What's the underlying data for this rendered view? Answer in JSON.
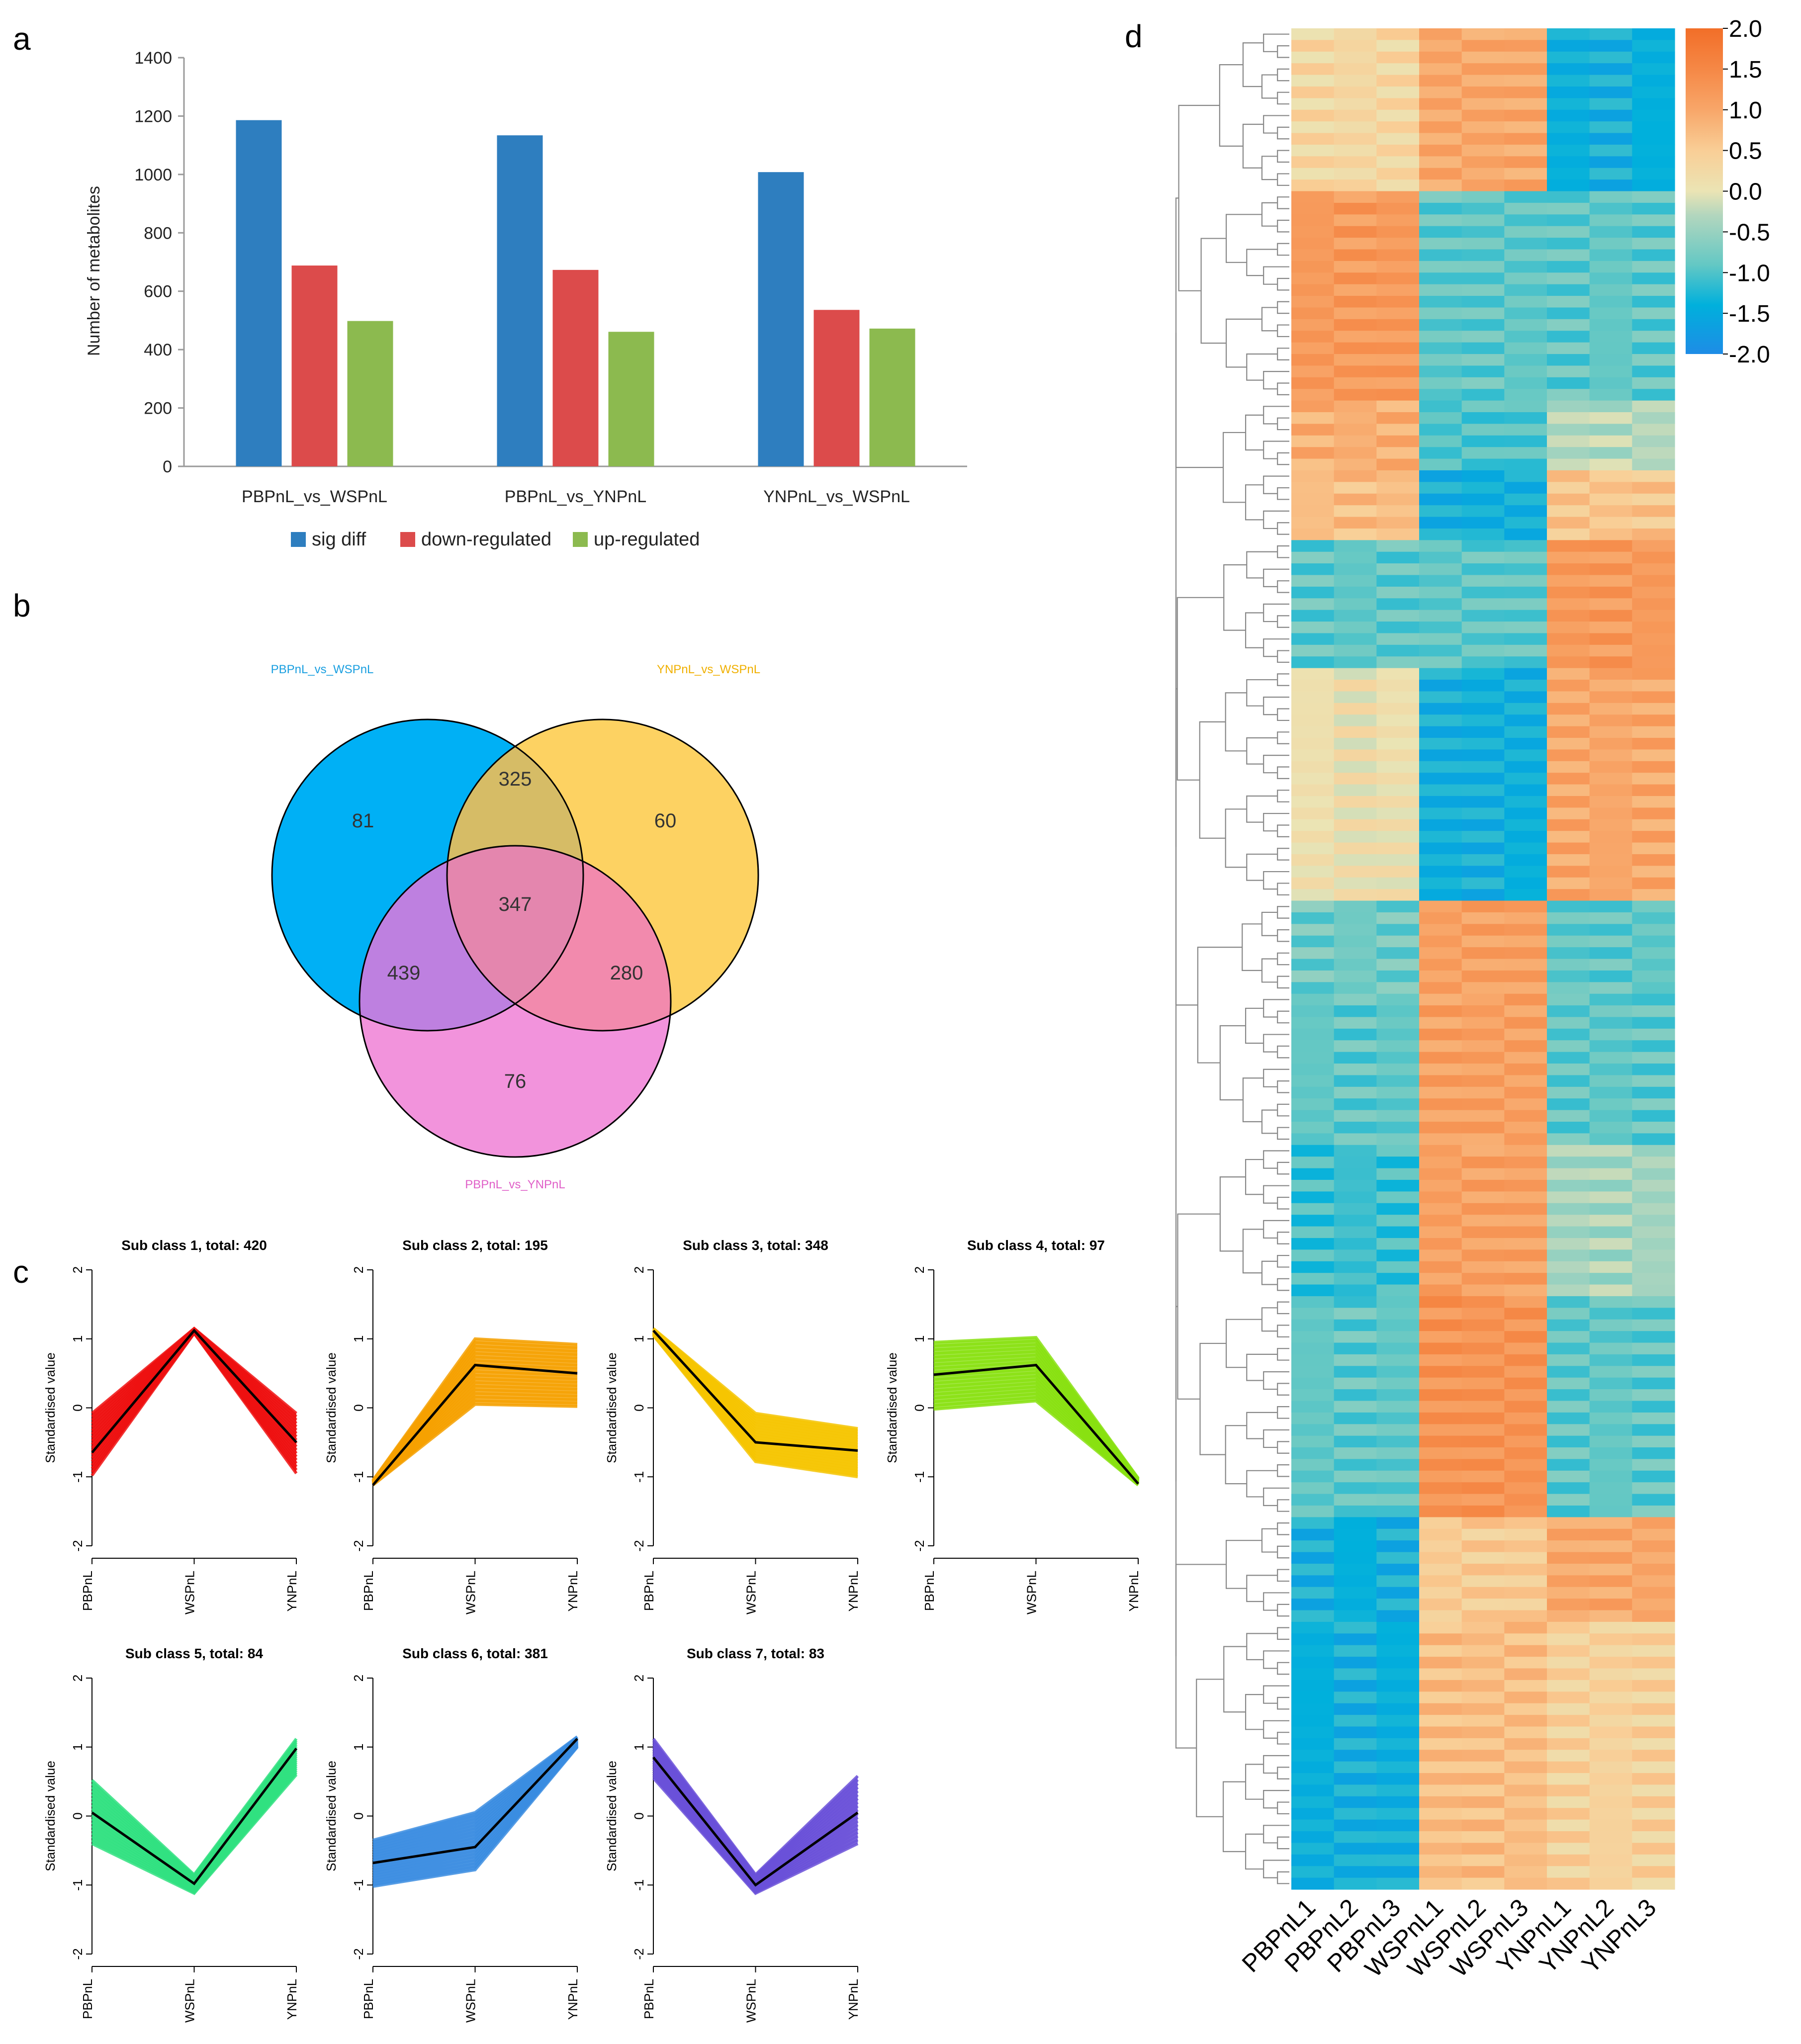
{
  "panel_labels": {
    "a": "a",
    "b": "b",
    "c": "c",
    "d": "d"
  },
  "chart_data": [
    {
      "id": "a",
      "type": "bar",
      "title": "",
      "xlabel": "",
      "ylabel": "Number of metabolites",
      "ylim": [
        0,
        1400
      ],
      "yticks": [
        0,
        200,
        400,
        600,
        800,
        1000,
        1200,
        1400
      ],
      "legend_position": "bottom",
      "categories": [
        "PBPnL_vs_WSPnL",
        "PBPnL_vs_YNPnL",
        "YNPnL_vs_WSPnL"
      ],
      "series": [
        {
          "name": "sig diff",
          "color": "#2e7ebf",
          "values": [
            1186,
            1134,
            1008
          ]
        },
        {
          "name": "down-regulated",
          "color": "#dc4b4b",
          "values": [
            688,
            673,
            536
          ]
        },
        {
          "name": "up-regulated",
          "color": "#8cba4f",
          "values": [
            498,
            461,
            472
          ]
        }
      ]
    },
    {
      "id": "b",
      "type": "venn",
      "sets": [
        {
          "name": "PBPnL_vs_WSPnL",
          "color": "#00b0f5",
          "label_color": "#1a9fe0"
        },
        {
          "name": "YNPnL_vs_WSPnL",
          "color": "#fdd262",
          "label_color": "#f0b000"
        },
        {
          "name": "PBPnL_vs_YNPnL",
          "color": "#f293dc",
          "label_color": "#e060c8"
        }
      ],
      "regions": {
        "only_PW": "81",
        "only_YW": "60",
        "only_PY": "76",
        "PW_YW": "325",
        "PW_PY": "439",
        "YW_PY": "280",
        "all": "347"
      }
    },
    {
      "id": "c",
      "type": "line",
      "ylabel": "Standardised value",
      "ylim": [
        -2,
        2
      ],
      "yticks": [
        "2",
        "1",
        "0",
        "-1",
        "-2"
      ],
      "x": [
        "PBPnL",
        "WSPnL",
        "YNPnL"
      ],
      "subclasses": [
        {
          "title": "Sub class 1, total: 420",
          "color": "#ee1010",
          "mean": [
            -0.65,
            1.12,
            -0.5
          ],
          "lower": [
            -0.98,
            1.08,
            -0.95
          ],
          "upper": [
            -0.08,
            1.15,
            -0.08
          ]
        },
        {
          "title": "Sub class 2, total: 195",
          "color": "#f5a000",
          "mean": [
            -1.12,
            0.62,
            0.5
          ],
          "lower": [
            -1.12,
            0.05,
            0.02
          ],
          "upper": [
            -1.05,
            1.0,
            0.92
          ]
        },
        {
          "title": "Sub class 3, total: 348",
          "color": "#f5c400",
          "mean": [
            1.12,
            -0.5,
            -0.62
          ],
          "lower": [
            1.05,
            -0.78,
            -1.0
          ],
          "upper": [
            1.15,
            -0.08,
            -0.3
          ]
        },
        {
          "title": "Sub class 4, total: 97",
          "color": "#88e010",
          "mean": [
            0.48,
            0.62,
            -1.1
          ],
          "lower": [
            -0.02,
            0.1,
            -1.12
          ],
          "upper": [
            0.95,
            1.02,
            -1.02
          ]
        },
        {
          "title": "Sub class 5, total: 84",
          "color": "#30e080",
          "mean": [
            0.05,
            -0.98,
            0.98
          ],
          "lower": [
            -0.4,
            -1.12,
            0.6
          ],
          "upper": [
            0.52,
            -0.85,
            1.12
          ]
        },
        {
          "title": "Sub class 6, total: 381",
          "color": "#3a8ce0",
          "mean": [
            -0.68,
            -0.45,
            1.12
          ],
          "lower": [
            -1.02,
            -0.78,
            1.0
          ],
          "upper": [
            -0.35,
            0.05,
            1.15
          ]
        },
        {
          "title": "Sub class 7, total: 83",
          "color": "#6a50d8",
          "mean": [
            0.85,
            -1.0,
            0.05
          ],
          "lower": [
            0.55,
            -1.12,
            -0.4
          ],
          "upper": [
            1.12,
            -0.85,
            0.58
          ]
        }
      ]
    },
    {
      "id": "d",
      "type": "heatmap",
      "columns": [
        "PBPnL1",
        "PBPnL2",
        "PBPnL3",
        "WSPnL1",
        "WSPnL2",
        "WSPnL3",
        "YNPnL1",
        "YNPnL2",
        "YNPnL3"
      ],
      "color_range": [
        -2,
        2
      ],
      "colorbar_ticks": [
        "2.0",
        "1.5",
        "1.0",
        "0.5",
        "0.0",
        "-0.5",
        "-1.0",
        "-1.5",
        "-2.0"
      ],
      "row_blocks": [
        {
          "rows": 14,
          "pattern": [
            0.3,
            0.3,
            0.3,
            1.0,
            1.0,
            1.0,
            -1.4,
            -1.4,
            -1.4
          ]
        },
        {
          "rows": 18,
          "pattern": [
            1.2,
            1.2,
            1.2,
            -0.9,
            -0.9,
            -0.9,
            -0.9,
            -0.9,
            -0.9
          ]
        },
        {
          "rows": 6,
          "pattern": [
            0.9,
            0.9,
            0.9,
            -1.0,
            -1.0,
            -1.0,
            -0.3,
            -0.3,
            -0.3
          ]
        },
        {
          "rows": 6,
          "pattern": [
            0.7,
            0.7,
            0.7,
            -1.4,
            -1.4,
            -1.4,
            0.6,
            0.6,
            0.6
          ]
        },
        {
          "rows": 11,
          "pattern": [
            -0.9,
            -0.9,
            -0.9,
            -0.9,
            -0.9,
            -0.9,
            1.2,
            1.2,
            1.2
          ]
        },
        {
          "rows": 20,
          "pattern": [
            0.1,
            0.1,
            0.1,
            -1.4,
            -1.4,
            -1.4,
            1.0,
            1.0,
            1.0
          ]
        },
        {
          "rows": 8,
          "pattern": [
            -0.8,
            -0.8,
            -0.8,
            1.1,
            1.1,
            1.1,
            -0.9,
            -0.9,
            -0.9
          ]
        },
        {
          "rows": 13,
          "pattern": [
            -0.9,
            -0.9,
            -0.9,
            1.1,
            1.1,
            1.1,
            -0.9,
            -0.9,
            -0.9
          ]
        },
        {
          "rows": 13,
          "pattern": [
            -1.1,
            -1.1,
            -1.1,
            1.1,
            1.1,
            1.1,
            -0.4,
            -0.4,
            -0.4
          ]
        },
        {
          "rows": 19,
          "pattern": [
            -0.9,
            -0.9,
            -0.9,
            1.3,
            1.3,
            1.3,
            -0.9,
            -0.9,
            -0.9
          ]
        },
        {
          "rows": 9,
          "pattern": [
            -1.4,
            -1.4,
            -1.4,
            0.5,
            0.5,
            0.5,
            1.0,
            1.0,
            1.0
          ]
        },
        {
          "rows": 23,
          "pattern": [
            -1.4,
            -1.4,
            -1.4,
            0.7,
            0.7,
            0.7,
            0.4,
            0.4,
            0.4
          ]
        }
      ]
    }
  ]
}
